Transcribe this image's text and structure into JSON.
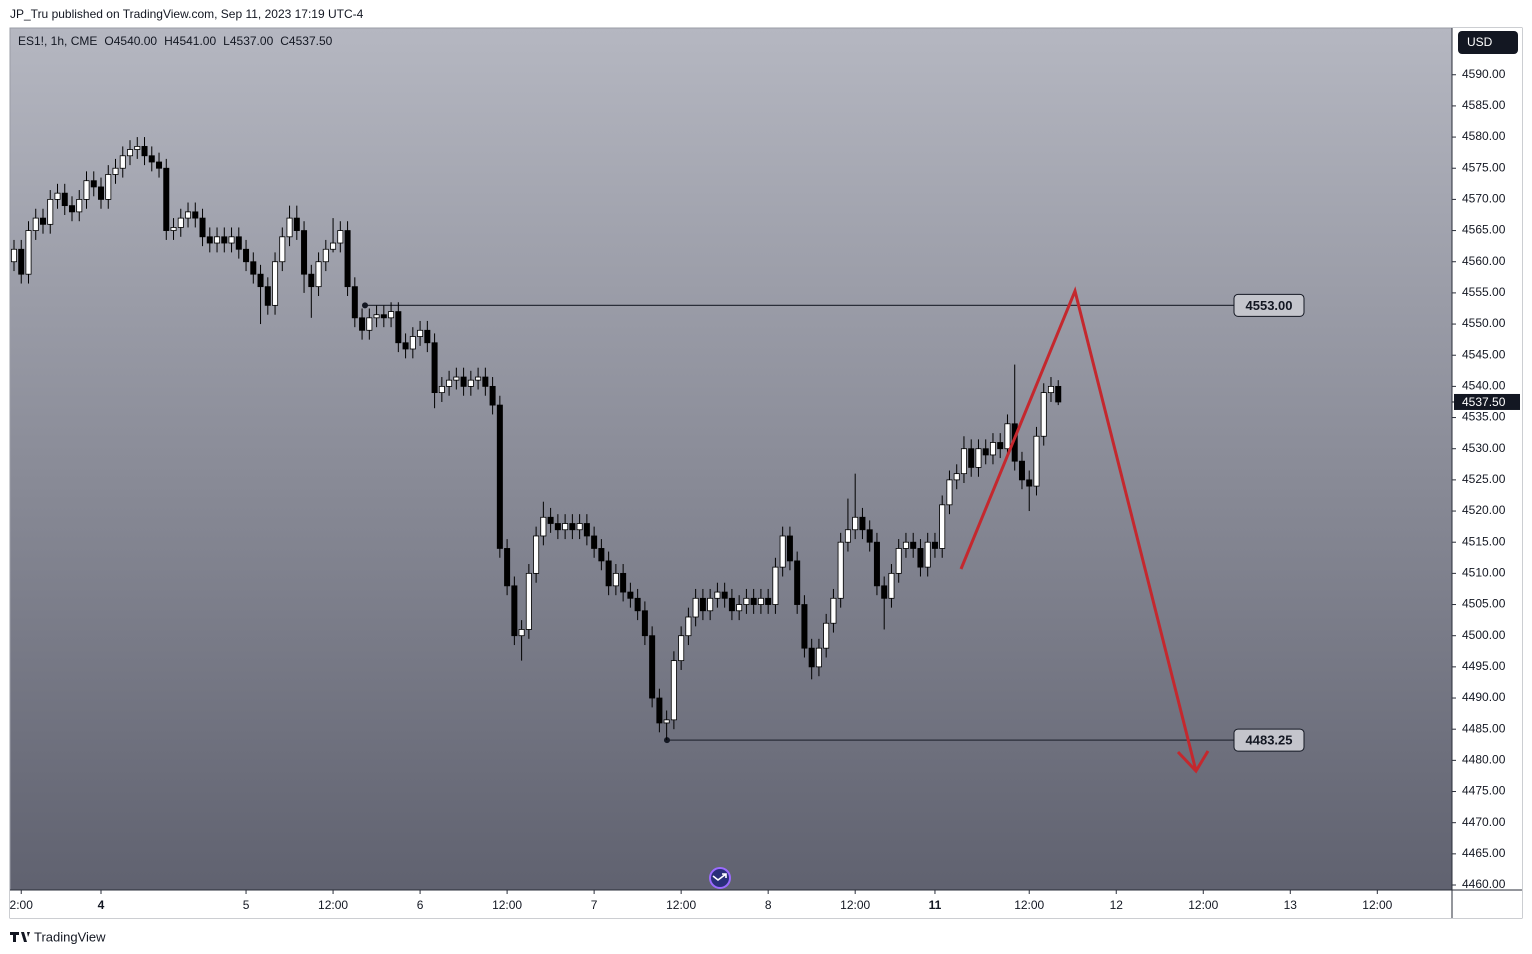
{
  "header": "JP_Tru published on TradingView.com, Sep 11, 2023 17:19 UTC-4",
  "footer": "TradingView",
  "currency": "USD",
  "chart_data": {
    "type": "candlestick",
    "legend": {
      "symbol": "ES1!, 1h, CME",
      "fields": [
        {
          "key": "O",
          "value": "4540.00"
        },
        {
          "key": "H",
          "value": "4541.00"
        },
        {
          "key": "L",
          "value": "4537.00"
        },
        {
          "key": "C",
          "value": "4537.50"
        }
      ]
    },
    "open": [
      4560,
      4562,
      4558,
      4565,
      4567,
      4566,
      4570,
      4571,
      4569,
      4568,
      4570,
      4573,
      4572,
      4570,
      4574,
      4575,
      4577,
      4578,
      4578.5,
      4577,
      4576,
      4575,
      4565,
      4565.5,
      4567,
      4568,
      4567,
      4564,
      4563,
      4564,
      4563,
      4564,
      4562,
      4560,
      4558,
      4556,
      4553,
      4560,
      4564,
      4567,
      4565,
      4558,
      4556,
      4560,
      4562,
      4563,
      4565,
      4556,
      4551,
      4549,
      4551,
      4551.5,
      4551,
      4552,
      4547,
      4546,
      4548,
      4549,
      4547,
      4539,
      4540,
      4541,
      4541.5,
      4540,
      4541,
      4541.5,
      4540,
      4537,
      4514,
      4508,
      4500,
      4501,
      4510,
      4516,
      4519,
      4518,
      4517,
      4518,
      4517,
      4518,
      4516,
      4514,
      4512,
      4508,
      4510,
      4507,
      4506,
      4504,
      4500,
      4490,
      4486,
      4486.5,
      4496,
      4500,
      4503,
      4506,
      4504,
      4506,
      4507,
      4506,
      4504,
      4505,
      4506,
      4505,
      4506,
      4505,
      4511,
      4516,
      4512,
      4505,
      4498,
      4495,
      4498,
      4502,
      4506,
      4515,
      4517,
      4519,
      4517,
      4515,
      4508,
      4506,
      4510,
      4514,
      4515,
      4514,
      4511,
      4515,
      4514,
      4521,
      4525,
      4526,
      4530,
      4527,
      4530,
      4529,
      4531,
      4530,
      4534,
      4528,
      4525,
      4524,
      4532,
      4539,
      4540
    ],
    "high": [
      4563.5,
      4563.5,
      4566.5,
      4568.5,
      4568.5,
      4571.5,
      4572.5,
      4572.5,
      4570.5,
      4571.5,
      4574.5,
      4574.5,
      4573.5,
      4575.5,
      4576.5,
      4578.5,
      4579.5,
      4580,
      4580,
      4578.5,
      4577.5,
      4576.5,
      4567,
      4568.5,
      4569.5,
      4569.5,
      4568.5,
      4565.5,
      4565.5,
      4565.5,
      4565.5,
      4565.5,
      4563.5,
      4561.5,
      4559.5,
      4557.5,
      4561.5,
      4565.5,
      4569,
      4569,
      4566.5,
      4559.5,
      4561.5,
      4563.5,
      4567,
      4566.5,
      4566.5,
      4557.5,
      4552.5,
      4552.5,
      4553,
      4553,
      4553.5,
      4553.5,
      4548.5,
      4549.5,
      4550.5,
      4550.5,
      4548.5,
      4541.5,
      4542.5,
      4543,
      4543,
      4542.5,
      4543,
      4543,
      4541.5,
      4538.5,
      4515.5,
      4509.5,
      4502.5,
      4511.5,
      4517.5,
      4521.5,
      4520.5,
      4519.5,
      4519.5,
      4519.5,
      4519.5,
      4519.5,
      4517.5,
      4515.5,
      4513.5,
      4511.5,
      4511.5,
      4508.5,
      4507.5,
      4505.5,
      4501.5,
      4491.5,
      4488,
      4497.5,
      4501.5,
      4504.5,
      4507.5,
      4507.5,
      4507.5,
      4508.5,
      4508.5,
      4507.5,
      4506.5,
      4507.5,
      4507.5,
      4507.5,
      4507.5,
      4512.5,
      4517.5,
      4517.5,
      4513.5,
      4506.5,
      4499.5,
      4499.5,
      4503.5,
      4507.5,
      4516.5,
      4522,
      4526,
      4520.5,
      4518.5,
      4516.5,
      4509.5,
      4511.5,
      4515.5,
      4516.5,
      4516.5,
      4515.5,
      4516.5,
      4516.5,
      4522.5,
      4526.5,
      4527.5,
      4532,
      4531.5,
      4531.5,
      4531.5,
      4532.5,
      4532.5,
      4535.5,
      4543.5,
      4529.5,
      4526.5,
      4533.5,
      4540.5,
      4541.5,
      4541
    ],
    "low": [
      4558.5,
      4556.5,
      4556.5,
      4563.5,
      4564.5,
      4564.5,
      4568.5,
      4567.5,
      4566.5,
      4566.5,
      4568.5,
      4570.5,
      4568.5,
      4568.5,
      4572.5,
      4573.5,
      4575.5,
      4576.5,
      4575.5,
      4574.5,
      4573.5,
      4563.5,
      4563.5,
      4564,
      4565.5,
      4565.5,
      4562.5,
      4561.5,
      4561.5,
      4561.5,
      4561.5,
      4560.5,
      4558.5,
      4556.5,
      4550,
      4551.5,
      4551.5,
      4558.5,
      4562.5,
      4563.5,
      4555,
      4551,
      4554.5,
      4558.5,
      4561.5,
      4561.5,
      4554.5,
      4549.5,
      4547.5,
      4547.5,
      4549.5,
      4549.5,
      4549.5,
      4545.5,
      4544.5,
      4544.5,
      4546.5,
      4545.5,
      4536.5,
      4537.5,
      4538.5,
      4539.5,
      4538.5,
      4538.5,
      4539.5,
      4538.5,
      4535.5,
      4512.5,
      4506.5,
      4498.5,
      4496,
      4499.5,
      4508.5,
      4514.5,
      4516.5,
      4515.5,
      4515.5,
      4515.5,
      4515.5,
      4514.5,
      4512.5,
      4510.5,
      4506.5,
      4506.5,
      4505.5,
      4504.5,
      4502.5,
      4498.5,
      4488.5,
      4484.5,
      4483.25,
      4485,
      4494.5,
      4498.5,
      4501.5,
      4502.5,
      4502.5,
      4504.5,
      4504.5,
      4502.5,
      4502.5,
      4503.5,
      4503.5,
      4503.5,
      4503.5,
      4503.5,
      4509.5,
      4510.5,
      4503.5,
      4496.5,
      4493,
      4493.5,
      4496.5,
      4500.5,
      4504.5,
      4513.5,
      4515.5,
      4515.5,
      4513.5,
      4506.5,
      4501,
      4504.5,
      4508.5,
      4512.5,
      4512.5,
      4509.5,
      4509.5,
      4512.5,
      4512.5,
      4519.5,
      4523.5,
      4524.5,
      4525.5,
      4525.5,
      4527.5,
      4527.5,
      4528.5,
      4528.5,
      4526.5,
      4523.5,
      4520,
      4522.5,
      4530.5,
      4537.5,
      4537
    ],
    "close": [
      4562,
      4558,
      4565,
      4567,
      4566,
      4570,
      4571,
      4569,
      4568,
      4570,
      4573,
      4572,
      4570,
      4574,
      4575,
      4577,
      4578,
      4578.5,
      4577,
      4576,
      4575,
      4565,
      4565.5,
      4567,
      4568,
      4567,
      4564,
      4563,
      4564,
      4563,
      4564,
      4562,
      4560,
      4558,
      4556,
      4553,
      4560,
      4564,
      4567,
      4565,
      4558,
      4556,
      4560,
      4562,
      4563,
      4565,
      4556,
      4551,
      4549,
      4551,
      4551.5,
      4551,
      4552,
      4547,
      4546,
      4548,
      4549,
      4547,
      4539,
      4540,
      4541,
      4541.5,
      4540,
      4541,
      4541.5,
      4540,
      4537,
      4514,
      4508,
      4500,
      4501,
      4510,
      4516,
      4519,
      4518,
      4517,
      4518,
      4517,
      4518,
      4516,
      4514,
      4512,
      4508,
      4510,
      4507,
      4506,
      4504,
      4500,
      4490,
      4486,
      4486.5,
      4496,
      4500,
      4503,
      4506,
      4504,
      4506,
      4507,
      4506,
      4504,
      4505,
      4506,
      4505,
      4506,
      4505,
      4511,
      4516,
      4512,
      4505,
      4498,
      4495,
      4498,
      4502,
      4506,
      4515,
      4517,
      4519,
      4517,
      4515,
      4508,
      4506,
      4510,
      4514,
      4515,
      4514,
      4511,
      4515,
      4514,
      4521,
      4525,
      4526,
      4530,
      4527,
      4530,
      4529,
      4531,
      4530,
      4534,
      4528,
      4525,
      4524,
      4532,
      4539,
      4540,
      4537.5
    ],
    "up_color": "#ffffff",
    "down_color": "#000000",
    "wick_color": "#000000",
    "xlim": [
      -0.55,
      198.3
    ],
    "xticks": [
      {
        "value": 1,
        "label": "2:00"
      },
      {
        "value": 12,
        "label": "4",
        "bold": true
      },
      {
        "value": 32,
        "label": "5"
      },
      {
        "value": 44,
        "label": "12:00"
      },
      {
        "value": 56,
        "label": "6"
      },
      {
        "value": 68,
        "label": "12:00"
      },
      {
        "value": 80,
        "label": "7"
      },
      {
        "value": 92,
        "label": "12:00"
      },
      {
        "value": 104,
        "label": "8"
      },
      {
        "value": 116,
        "label": "12:00"
      },
      {
        "value": 127,
        "label": "11",
        "bold": true
      },
      {
        "value": 140,
        "label": "12:00"
      },
      {
        "value": 152,
        "label": "12"
      },
      {
        "value": 164,
        "label": "12:00"
      },
      {
        "value": 176,
        "label": "13"
      },
      {
        "value": 188,
        "label": "12:00"
      }
    ],
    "ylim": [
      4459.2,
      4597.5
    ],
    "yticks": [
      {
        "value": 4460,
        "label": "4460.00"
      },
      {
        "value": 4465,
        "label": "4465.00"
      },
      {
        "value": 4470,
        "label": "4470.00"
      },
      {
        "value": 4475,
        "label": "4475.00"
      },
      {
        "value": 4480,
        "label": "4480.00"
      },
      {
        "value": 4485,
        "label": "4485.00"
      },
      {
        "value": 4490,
        "label": "4490.00"
      },
      {
        "value": 4495,
        "label": "4495.00"
      },
      {
        "value": 4500,
        "label": "4500.00"
      },
      {
        "value": 4505,
        "label": "4505.00"
      },
      {
        "value": 4510,
        "label": "4510.00"
      },
      {
        "value": 4515,
        "label": "4515.00"
      },
      {
        "value": 4520,
        "label": "4520.00"
      },
      {
        "value": 4525,
        "label": "4525.00"
      },
      {
        "value": 4530,
        "label": "4530.00"
      },
      {
        "value": 4535,
        "label": "4535.00"
      },
      {
        "value": 4540,
        "label": "4540.00"
      },
      {
        "value": 4545,
        "label": "4545.00"
      },
      {
        "value": 4550,
        "label": "4550.00"
      },
      {
        "value": 4555,
        "label": "4555.00"
      },
      {
        "value": 4560,
        "label": "4560.00"
      },
      {
        "value": 4565,
        "label": "4565.00"
      },
      {
        "value": 4570,
        "label": "4570.00"
      },
      {
        "value": 4575,
        "label": "4575.00"
      },
      {
        "value": 4580,
        "label": "4580.00"
      },
      {
        "value": 4585,
        "label": "4585.00"
      },
      {
        "value": 4590,
        "label": "4590.00"
      }
    ],
    "grid": false,
    "levels": [
      {
        "value": 4553,
        "label": "4553.00"
      },
      {
        "value": 4483.25,
        "label": "4483.25"
      }
    ],
    "last_price": {
      "value": 4537.5,
      "label": "4537.50"
    }
  }
}
